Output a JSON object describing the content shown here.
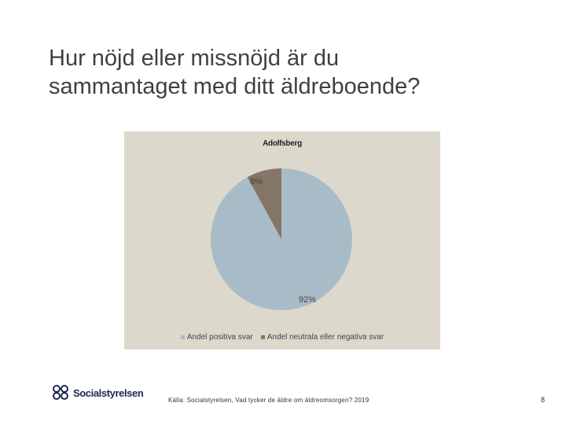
{
  "slide": {
    "title_line1": "Hur nöjd eller missnöjd är du",
    "title_line2": "sammantaget med ditt äldreboende?",
    "source": "Källa: Socialstyrelsen, Vad tycker de äldre om äldreomsorgen? 2019",
    "page_number": "8"
  },
  "logo": {
    "text": "Socialstyrelsen",
    "icon": "socialstyrelsen-logo-icon"
  },
  "chart_data": {
    "type": "pie",
    "title": "Adolfsberg",
    "slices": [
      {
        "name": "Andel positiva svar",
        "value": 92,
        "label": "92%",
        "color": "#a8bcc8"
      },
      {
        "name": "Andel neutrala eller negativa svar",
        "value": 8,
        "label": "8%",
        "color": "#847566"
      }
    ],
    "legend_position": "bottom",
    "background_color": "#dcd8cc"
  }
}
